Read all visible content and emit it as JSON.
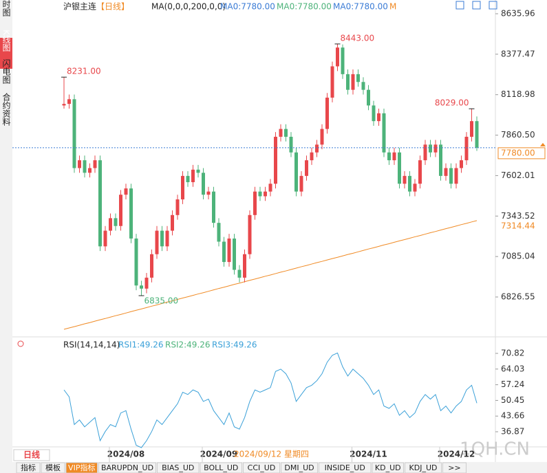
{
  "chart_data": {
    "type": "candlestick",
    "title": "沪银主连",
    "period": "【日线】",
    "ma_header": "MA(0,0,0,200,0,0)",
    "ma_legend": [
      "MA0:7780.00",
      "MA0:7780.00",
      "MA0:7780.00",
      "M"
    ],
    "up_color": "#e8474b",
    "down_color": "#4db37a",
    "ma_color": "#f08a24",
    "ylim": [
      6580.5,
      8701.8
    ],
    "yticks": [
      8635.96,
      8377.47,
      8118.98,
      {
        "value": 7860.5,
        "label": "7860.50"
      },
      7602.01,
      7343.52,
      7085.04,
      6826.55
    ],
    "ohlc": [
      [
        8050,
        8231,
        8030,
        8060
      ],
      [
        8060,
        8120,
        8030,
        8090
      ],
      [
        8090,
        8120,
        7620,
        7650
      ],
      [
        7650,
        7730,
        7620,
        7700
      ],
      [
        7700,
        7730,
        7590,
        7620
      ],
      [
        7620,
        7680,
        7590,
        7650
      ],
      [
        7650,
        7730,
        7620,
        7700
      ],
      [
        7700,
        7730,
        7120,
        7150
      ],
      [
        7150,
        7280,
        7120,
        7250
      ],
      [
        7250,
        7360,
        7220,
        7330
      ],
      [
        7330,
        7360,
        7250,
        7280
      ],
      [
        7280,
        7510,
        7250,
        7480
      ],
      [
        7480,
        7550,
        7450,
        7520
      ],
      [
        7520,
        7550,
        7170,
        7200
      ],
      [
        7200,
        7230,
        6870,
        6900
      ],
      [
        6900,
        6930,
        6835,
        6880
      ],
      [
        6880,
        6980,
        6850,
        6950
      ],
      [
        6950,
        7130,
        6920,
        7100
      ],
      [
        7100,
        7280,
        7070,
        7250
      ],
      [
        7250,
        7280,
        7120,
        7150
      ],
      [
        7150,
        7280,
        7120,
        7250
      ],
      [
        7250,
        7380,
        7220,
        7350
      ],
      [
        7350,
        7480,
        7320,
        7450
      ],
      [
        7450,
        7630,
        7420,
        7600
      ],
      [
        7600,
        7630,
        7530,
        7560
      ],
      [
        7560,
        7670,
        7530,
        7640
      ],
      [
        7640,
        7670,
        7590,
        7620
      ],
      [
        7620,
        7650,
        7450,
        7480
      ],
      [
        7480,
        7530,
        7450,
        7500
      ],
      [
        7500,
        7530,
        7270,
        7300
      ],
      [
        7300,
        7330,
        7150,
        7180
      ],
      [
        7180,
        7210,
        7020,
        7050
      ],
      [
        7050,
        7230,
        7020,
        7200
      ],
      [
        7200,
        7230,
        6970,
        7000
      ],
      [
        7000,
        7030,
        6920,
        6950
      ],
      [
        6950,
        7130,
        6920,
        7100
      ],
      [
        7100,
        7380,
        7070,
        7350
      ],
      [
        7350,
        7530,
        7320,
        7500
      ],
      [
        7500,
        7530,
        7440,
        7470
      ],
      [
        7470,
        7530,
        7440,
        7500
      ],
      [
        7500,
        7580,
        7470,
        7550
      ],
      [
        7550,
        7880,
        7520,
        7850
      ],
      [
        7850,
        7930,
        7820,
        7900
      ],
      [
        7900,
        7930,
        7820,
        7850
      ],
      [
        7850,
        7880,
        7720,
        7750
      ],
      [
        7750,
        7780,
        7470,
        7500
      ],
      [
        7500,
        7630,
        7470,
        7600
      ],
      [
        7600,
        7730,
        7570,
        7700
      ],
      [
        7700,
        7780,
        7670,
        7750
      ],
      [
        7750,
        7830,
        7720,
        7800
      ],
      [
        7800,
        7930,
        7770,
        7900
      ],
      [
        7900,
        8130,
        7870,
        8100
      ],
      [
        8100,
        8330,
        8070,
        8300
      ],
      [
        8300,
        8443,
        8270,
        8420
      ],
      [
        8420,
        8440,
        8220,
        8250
      ],
      [
        8250,
        8280,
        8120,
        8150
      ],
      [
        8150,
        8280,
        8120,
        8250
      ],
      [
        8250,
        8280,
        8170,
        8200
      ],
      [
        8200,
        8230,
        8120,
        8150
      ],
      [
        8150,
        8180,
        8020,
        8050
      ],
      [
        8050,
        8080,
        7920,
        7950
      ],
      [
        7950,
        8030,
        7920,
        8000
      ],
      [
        8000,
        8030,
        7720,
        7750
      ],
      [
        7750,
        7780,
        7670,
        7700
      ],
      [
        7700,
        7780,
        7670,
        7750
      ],
      [
        7750,
        7780,
        7520,
        7550
      ],
      [
        7550,
        7630,
        7520,
        7600
      ],
      [
        7600,
        7630,
        7470,
        7500
      ],
      [
        7500,
        7580,
        7470,
        7550
      ],
      [
        7550,
        7730,
        7520,
        7700
      ],
      [
        7700,
        7830,
        7670,
        7800
      ],
      [
        7800,
        7830,
        7720,
        7750
      ],
      [
        7750,
        7830,
        7720,
        7800
      ],
      [
        7800,
        7830,
        7570,
        7600
      ],
      [
        7600,
        7680,
        7570,
        7650
      ],
      [
        7650,
        7680,
        7520,
        7550
      ],
      [
        7550,
        7680,
        7520,
        7650
      ],
      [
        7650,
        7730,
        7620,
        7700
      ],
      [
        7700,
        7880,
        7670,
        7850
      ],
      [
        7850,
        8029,
        7820,
        7950
      ],
      [
        7950,
        7980,
        7760,
        7780
      ]
    ],
    "ma": [
      6620,
      6629,
      6637,
      6646,
      6655,
      6663,
      6672,
      6681,
      6689,
      6698,
      6707,
      6715,
      6724,
      6733,
      6742,
      6750,
      6759,
      6768,
      6776,
      6785,
      6794,
      6802,
      6811,
      6820,
      6828,
      6837,
      6846,
      6854,
      6863,
      6872,
      6881,
      6889,
      6898,
      6907,
      6915,
      6924,
      6933,
      6941,
      6950,
      6959,
      6967,
      6976,
      6985,
      6993,
      7002,
      7011,
      7020,
      7028,
      7037,
      7046,
      7054,
      7063,
      7072,
      7080,
      7089,
      7098,
      7106,
      7115,
      7124,
      7133,
      7141,
      7150,
      7159,
      7167,
      7176,
      7185,
      7193,
      7202,
      7211,
      7219,
      7228,
      7237,
      7245,
      7254,
      7263,
      7271,
      7280,
      7289,
      7297,
      7306,
      7314.44
    ],
    "ma_last_label": "7314.44",
    "last_price": {
      "value": 7780,
      "label": "7780.00"
    },
    "extremes": [
      {
        "candle": 0,
        "side": "high",
        "value": 8231,
        "label": "8231.00"
      },
      {
        "candle": 15,
        "side": "low",
        "value": 6835,
        "label": "6835.00"
      },
      {
        "candle": 53,
        "side": "high",
        "value": 8443,
        "label": "8443.00"
      },
      {
        "candle": 79,
        "side": "high",
        "value": 8029,
        "label": "8029.00"
      }
    ],
    "categories": [
      null,
      null,
      null,
      null,
      null,
      null,
      null,
      null,
      null,
      null,
      null,
      null,
      "2024/08",
      null,
      null,
      null,
      null,
      null,
      null,
      null,
      null,
      null,
      null,
      null,
      null,
      null,
      null,
      null,
      null,
      null,
      "2024/09",
      null,
      null,
      null,
      null,
      null,
      null,
      null,
      null,
      null,
      null,
      null,
      null,
      null,
      null,
      null,
      null,
      null,
      null,
      null,
      null,
      null,
      null,
      null,
      null,
      null,
      null,
      null,
      null,
      "2024/11",
      null,
      null,
      null,
      null,
      null,
      null,
      null,
      null,
      null,
      null,
      null,
      null,
      null,
      null,
      null,
      null,
      "2024/12",
      null,
      null,
      null,
      null
    ],
    "crosshair_label": "2024/09/12 星期四",
    "rsi": {
      "header": "RSI(14,14,14)",
      "legend": [
        {
          "text": "RSI1:49.26",
          "color": "#3aa0d8"
        },
        {
          "text": "RSI2:49.26",
          "color": "#4db37a"
        },
        {
          "text": "RSI3:49.26",
          "color": "#3aa0d8"
        }
      ],
      "color": "#3aa0d8",
      "ylim": [
        30.32,
        76.48
      ],
      "yticks": [
        70.82,
        64.03,
        57.24,
        50.45,
        43.66,
        36.87
      ],
      "values": [
        55,
        52,
        40,
        42,
        39,
        41,
        43,
        33,
        37,
        40,
        39,
        45,
        46,
        38,
        31,
        30,
        33,
        37,
        42,
        40,
        43,
        46,
        49,
        54,
        53,
        55,
        54,
        50,
        51,
        46,
        43,
        40,
        45,
        39,
        38,
        43,
        50,
        55,
        54,
        55,
        56,
        63,
        64,
        62,
        58,
        50,
        53,
        56,
        57,
        59,
        62,
        67,
        70,
        71,
        65,
        61,
        64,
        62,
        60,
        57,
        53,
        55,
        48,
        47,
        49,
        44,
        46,
        43,
        45,
        50,
        53,
        51,
        53,
        46,
        48,
        45,
        48,
        50,
        55,
        57,
        49.26
      ]
    }
  },
  "ui": {
    "sidebar": [
      "分时图",
      "K线图",
      "闪电图",
      "合约资料"
    ],
    "period_tab": "日线",
    "tabs": [
      "指标",
      "模板",
      "VIP指标",
      "BARUPDN_UD",
      "BIAS_UD",
      "BOLL_UD",
      "CCI_UD",
      "DMI_UD",
      "INSIDE_UD",
      "KD_UD",
      "KDJ_UD",
      ">>"
    ],
    "watermark": "1QH.CN"
  }
}
